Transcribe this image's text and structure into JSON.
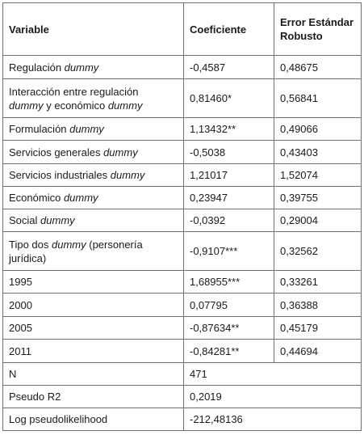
{
  "table": {
    "headers": {
      "variable": "Variable",
      "coefficient": "Coeficiente",
      "robust_se": "Error Estándar Robusto"
    },
    "rows": [
      {
        "label": "Regulación",
        "label_italic": "dummy",
        "label_tail": "",
        "coef": "-0,4587",
        "se": "0,48675"
      },
      {
        "label": "Interacción entre regulación",
        "label_italic": "dummy",
        "label_tail": " y económico ",
        "label_italic2": "dummy",
        "coef": "0,81460*",
        "se": "0,56841"
      },
      {
        "label": "Formulación",
        "label_italic": "dummy",
        "label_tail": "",
        "coef": "1,13432**",
        "se": "0,49066"
      },
      {
        "label": "Servicios generales",
        "label_italic": "dummy",
        "label_tail": "",
        "coef": "-0,5038",
        "se": "0,43403"
      },
      {
        "label": "Servicios industriales",
        "label_italic": "dummy",
        "label_tail": "",
        "coef": "1,21017",
        "se": "1,52074"
      },
      {
        "label": "Económico",
        "label_italic": "dummy",
        "label_tail": "",
        "coef": "0,23947",
        "se": "0,39755"
      },
      {
        "label": "Social",
        "label_italic": "dummy",
        "label_tail": "",
        "coef": "-0,0392",
        "se": "0,29004"
      },
      {
        "label": "Tipo dos",
        "label_italic": "dummy",
        "label_tail": " (personería jurídica)",
        "coef": "-0,9107***",
        "se": "0,32562"
      },
      {
        "label": "1995",
        "coef": "1,68955***",
        "se": "0,33261"
      },
      {
        "label": "2000",
        "coef": "0,07795",
        "se": "0,36388"
      },
      {
        "label": "2005",
        "coef": "-0,87634**",
        "se": "0,45179"
      },
      {
        "label": "2011",
        "coef": "-0,84281**",
        "se": "0,44694"
      }
    ],
    "footer": [
      {
        "label": "N",
        "value": "471"
      },
      {
        "label": "Pseudo R2",
        "value": "0,2019"
      },
      {
        "label": "Log pseudolikelihood",
        "value": "-212,48136"
      }
    ]
  }
}
